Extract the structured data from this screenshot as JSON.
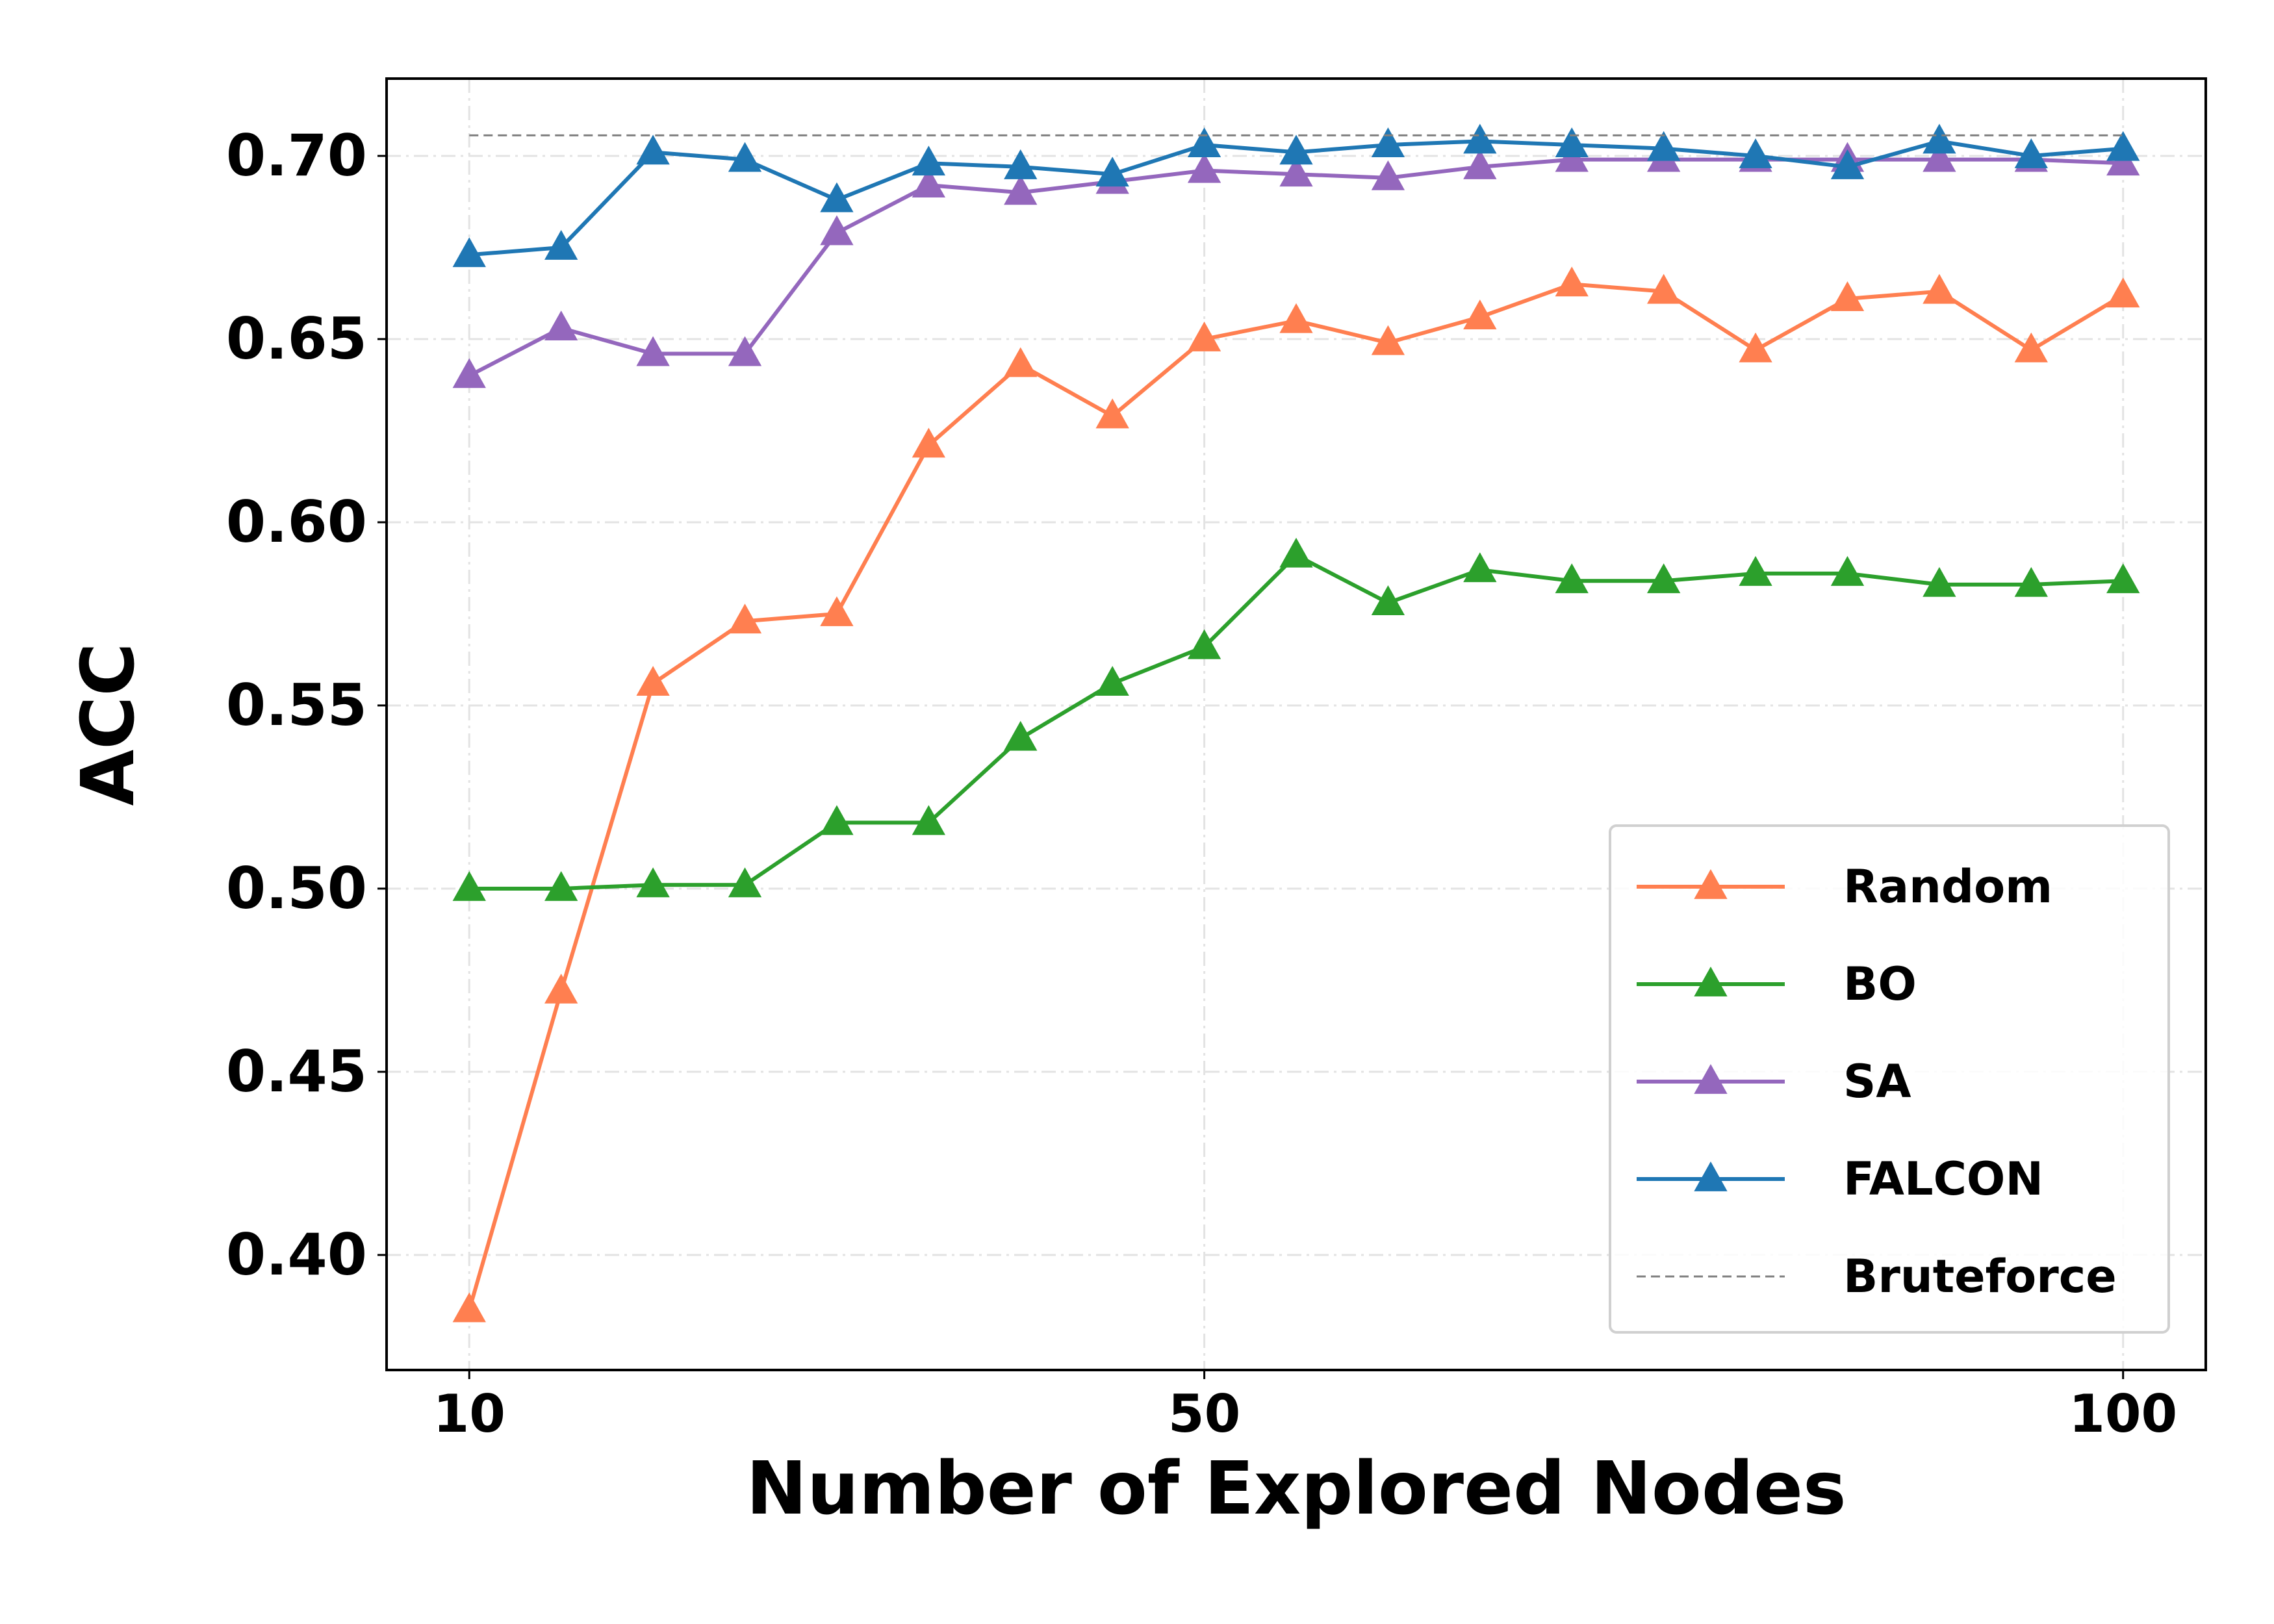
{
  "chart_data": {
    "type": "line",
    "xlabel": "Number of Explored Nodes",
    "ylabel": "ACC",
    "x": [
      10,
      15,
      20,
      25,
      30,
      35,
      40,
      45,
      50,
      55,
      60,
      65,
      70,
      75,
      80,
      85,
      90,
      95,
      100
    ],
    "series": [
      {
        "name": "Random",
        "color": "#ff7f50",
        "marker": "triangle",
        "dash": false,
        "values": [
          0.385,
          0.472,
          0.556,
          0.573,
          0.575,
          0.621,
          0.643,
          0.629,
          0.65,
          0.655,
          0.649,
          0.656,
          0.665,
          0.663,
          0.647,
          0.661,
          0.663,
          0.647,
          0.662
        ]
      },
      {
        "name": "BO",
        "color": "#2ca02c",
        "marker": "triangle",
        "dash": false,
        "values": [
          0.5,
          0.5,
          0.501,
          0.501,
          0.518,
          0.518,
          0.541,
          0.556,
          0.566,
          0.591,
          0.578,
          0.587,
          0.584,
          0.584,
          0.586,
          0.586,
          0.583,
          0.583,
          0.584
        ]
      },
      {
        "name": "SA",
        "color": "#9467bd",
        "marker": "triangle",
        "dash": false,
        "values": [
          0.64,
          0.653,
          0.646,
          0.646,
          0.679,
          0.692,
          0.69,
          0.693,
          0.696,
          0.695,
          0.694,
          0.697,
          0.699,
          0.699,
          0.699,
          0.699,
          0.699,
          0.699,
          0.698
        ]
      },
      {
        "name": "FALCON",
        "color": "#1f77b4",
        "marker": "triangle",
        "dash": false,
        "values": [
          0.673,
          0.675,
          0.701,
          0.699,
          0.688,
          0.698,
          0.697,
          0.695,
          0.703,
          0.701,
          0.703,
          0.704,
          0.703,
          0.702,
          0.7,
          0.697,
          0.704,
          0.7,
          0.702
        ]
      },
      {
        "name": "Bruteforce",
        "color": "#808080",
        "marker": "none",
        "dash": true,
        "values": [
          0.7056,
          0.7056,
          0.7056,
          0.7056,
          0.7056,
          0.7056,
          0.7056,
          0.7056,
          0.7056,
          0.7056,
          0.7056,
          0.7056,
          0.7056,
          0.7056,
          0.7056,
          0.7056,
          0.7056,
          0.7056,
          0.7056
        ]
      }
    ],
    "xlim": [
      5.5,
      104.5
    ],
    "xticks": [
      10,
      50,
      100
    ],
    "ylim": [
      0.3686,
      0.7211
    ],
    "yticks": [
      {
        "value": 0.4,
        "label": "0.40"
      },
      {
        "value": 0.45,
        "label": "0.45"
      },
      {
        "value": 0.5,
        "label": "0.50"
      },
      {
        "value": 0.55,
        "label": "0.55"
      },
      {
        "value": 0.6,
        "label": "0.60"
      },
      {
        "value": 0.65,
        "label": "0.65"
      },
      {
        "value": 0.7,
        "label": "0.70"
      }
    ],
    "grid": true,
    "legend": "lower right"
  }
}
